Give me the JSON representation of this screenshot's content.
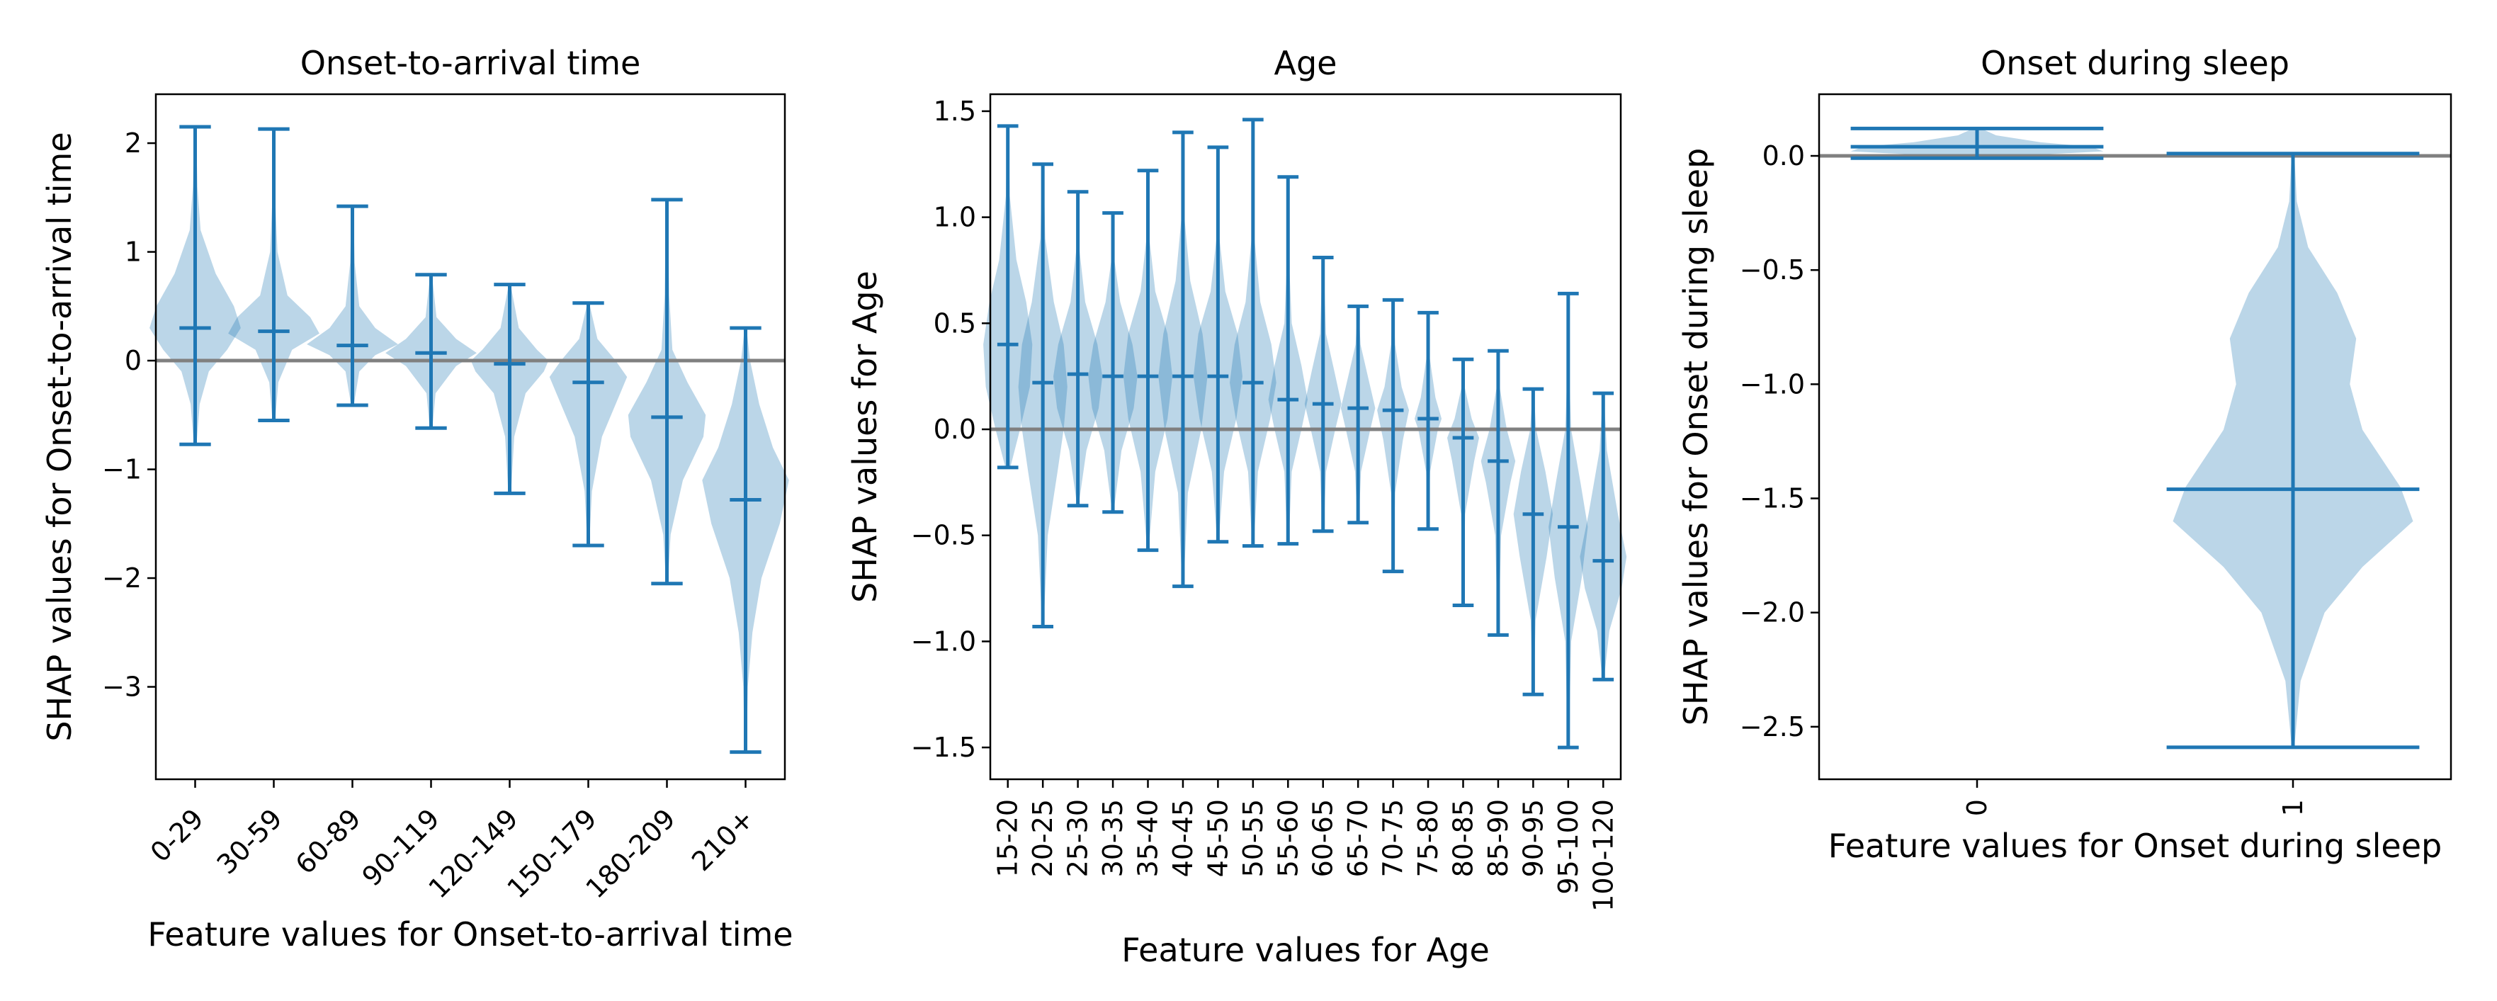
{
  "chart_data": [
    {
      "type": "violin",
      "title": "Onset-to-arrival time",
      "xlabel": "Feature values for Onset-to-arrival time",
      "ylabel": "SHAP values for Onset-to-arrival time",
      "ylim": [
        -3.85,
        2.45
      ],
      "yticks": [
        -3,
        -2,
        -1,
        0,
        1,
        2
      ],
      "ytick_labels": [
        "−3",
        "−2",
        "−1",
        "0",
        "1",
        "2"
      ],
      "xtick_rotation": 45,
      "reference_line": 0,
      "categories": [
        "0-29",
        "30-59",
        "60-89",
        "90-119",
        "120-149",
        "150-179",
        "180-209",
        "210+"
      ],
      "min": [
        -0.77,
        -0.55,
        -0.41,
        -0.62,
        -1.22,
        -1.7,
        -2.05,
        -3.6
      ],
      "max": [
        2.15,
        2.13,
        1.42,
        0.79,
        0.7,
        0.53,
        1.48,
        0.3
      ],
      "median": [
        0.3,
        0.27,
        0.14,
        0.07,
        -0.03,
        -0.2,
        -0.52,
        -1.28
      ],
      "width_scale": 0.58,
      "density": [
        [
          [
            -0.77,
            0.03
          ],
          [
            -0.4,
            0.1
          ],
          [
            -0.1,
            0.3
          ],
          [
            0.1,
            0.7
          ],
          [
            0.3,
            1.0
          ],
          [
            0.5,
            0.85
          ],
          [
            0.8,
            0.45
          ],
          [
            1.2,
            0.12
          ],
          [
            1.6,
            0.05
          ],
          [
            2.15,
            0.02
          ]
        ],
        [
          [
            -0.55,
            0.03
          ],
          [
            -0.2,
            0.1
          ],
          [
            0.1,
            0.4
          ],
          [
            0.25,
            1.0
          ],
          [
            0.4,
            0.8
          ],
          [
            0.6,
            0.3
          ],
          [
            1.0,
            0.08
          ],
          [
            1.5,
            0.03
          ],
          [
            2.13,
            0.02
          ]
        ],
        [
          [
            -0.41,
            0.03
          ],
          [
            -0.1,
            0.15
          ],
          [
            0.05,
            0.5
          ],
          [
            0.15,
            1.0
          ],
          [
            0.3,
            0.5
          ],
          [
            0.5,
            0.15
          ],
          [
            0.9,
            0.05
          ],
          [
            1.42,
            0.02
          ]
        ],
        [
          [
            -0.62,
            0.03
          ],
          [
            -0.3,
            0.1
          ],
          [
            -0.05,
            0.55
          ],
          [
            0.07,
            1.0
          ],
          [
            0.2,
            0.55
          ],
          [
            0.4,
            0.12
          ],
          [
            0.79,
            0.02
          ]
        ],
        [
          [
            -1.22,
            0.03
          ],
          [
            -0.7,
            0.1
          ],
          [
            -0.3,
            0.35
          ],
          [
            -0.1,
            0.75
          ],
          [
            0.0,
            0.85
          ],
          [
            0.1,
            0.6
          ],
          [
            0.3,
            0.2
          ],
          [
            0.7,
            0.02
          ]
        ],
        [
          [
            -1.7,
            0.02
          ],
          [
            -1.2,
            0.08
          ],
          [
            -0.7,
            0.3
          ],
          [
            -0.3,
            0.7
          ],
          [
            -0.15,
            0.85
          ],
          [
            0.0,
            0.6
          ],
          [
            0.2,
            0.2
          ],
          [
            0.53,
            0.02
          ]
        ],
        [
          [
            -2.05,
            0.02
          ],
          [
            -1.6,
            0.08
          ],
          [
            -1.1,
            0.35
          ],
          [
            -0.7,
            0.8
          ],
          [
            -0.5,
            0.85
          ],
          [
            -0.2,
            0.45
          ],
          [
            0.1,
            0.12
          ],
          [
            0.6,
            0.05
          ],
          [
            1.48,
            0.02
          ]
        ],
        [
          [
            -3.6,
            0.02
          ],
          [
            -3.0,
            0.05
          ],
          [
            -2.5,
            0.15
          ],
          [
            -2.0,
            0.35
          ],
          [
            -1.5,
            0.75
          ],
          [
            -1.1,
            0.95
          ],
          [
            -0.8,
            0.6
          ],
          [
            -0.4,
            0.3
          ],
          [
            0.0,
            0.1
          ],
          [
            0.3,
            0.02
          ]
        ]
      ]
    },
    {
      "type": "violin",
      "title": "Age",
      "xlabel": "Feature values for Age",
      "ylabel": "SHAP values for Age",
      "ylim": [
        -1.65,
        1.58
      ],
      "yticks": [
        -1.5,
        -1.0,
        -0.5,
        0.0,
        0.5,
        1.0,
        1.5
      ],
      "ytick_labels": [
        "−1.5",
        "−1.0",
        "−0.5",
        "0.0",
        "0.5",
        "1.0",
        "1.5"
      ],
      "xtick_rotation": 90,
      "reference_line": 0,
      "categories": [
        "15-20",
        "20-25",
        "25-30",
        "30-35",
        "35-40",
        "40-45",
        "45-50",
        "50-55",
        "55-60",
        "60-65",
        "65-70",
        "70-75",
        "75-80",
        "80-85",
        "85-90",
        "90-95",
        "95-100",
        "100-120"
      ],
      "min": [
        -0.18,
        -0.93,
        -0.36,
        -0.39,
        -0.57,
        -0.74,
        -0.53,
        -0.55,
        -0.54,
        -0.48,
        -0.44,
        -0.67,
        -0.47,
        -0.83,
        -0.97,
        -1.25,
        -1.5,
        -1.18
      ],
      "max": [
        1.43,
        1.25,
        1.12,
        1.02,
        1.22,
        1.4,
        1.33,
        1.46,
        1.19,
        0.81,
        0.58,
        0.61,
        0.55,
        0.33,
        0.37,
        0.19,
        0.64,
        0.17
      ],
      "median": [
        0.4,
        0.22,
        0.26,
        0.25,
        0.25,
        0.25,
        0.25,
        0.22,
        0.14,
        0.12,
        0.1,
        0.09,
        0.05,
        -0.04,
        -0.15,
        -0.4,
        -0.46,
        -0.62
      ],
      "width_scale": 0.7,
      "density": [
        [
          [
            -0.18,
            0.1
          ],
          [
            0.0,
            0.5
          ],
          [
            0.2,
            0.9
          ],
          [
            0.4,
            1.0
          ],
          [
            0.6,
            0.75
          ],
          [
            0.8,
            0.35
          ],
          [
            1.1,
            0.08
          ],
          [
            1.43,
            0.03
          ]
        ],
        [
          [
            -0.93,
            0.03
          ],
          [
            -0.5,
            0.2
          ],
          [
            -0.2,
            0.6
          ],
          [
            0.0,
            0.85
          ],
          [
            0.2,
            1.0
          ],
          [
            0.4,
            0.85
          ],
          [
            0.6,
            0.45
          ],
          [
            0.9,
            0.1
          ],
          [
            1.25,
            0.03
          ]
        ],
        [
          [
            -0.36,
            0.03
          ],
          [
            -0.1,
            0.35
          ],
          [
            0.1,
            0.85
          ],
          [
            0.25,
            1.0
          ],
          [
            0.4,
            0.8
          ],
          [
            0.6,
            0.3
          ],
          [
            0.85,
            0.06
          ],
          [
            1.12,
            0.02
          ]
        ],
        [
          [
            -0.39,
            0.03
          ],
          [
            -0.1,
            0.35
          ],
          [
            0.1,
            0.85
          ],
          [
            0.25,
            1.0
          ],
          [
            0.4,
            0.8
          ],
          [
            0.6,
            0.3
          ],
          [
            0.8,
            0.06
          ],
          [
            1.02,
            0.02
          ]
        ],
        [
          [
            -0.57,
            0.03
          ],
          [
            -0.2,
            0.3
          ],
          [
            0.05,
            0.8
          ],
          [
            0.25,
            1.0
          ],
          [
            0.45,
            0.8
          ],
          [
            0.65,
            0.3
          ],
          [
            0.9,
            0.06
          ],
          [
            1.22,
            0.02
          ]
        ],
        [
          [
            -0.74,
            0.03
          ],
          [
            -0.3,
            0.2
          ],
          [
            0.0,
            0.75
          ],
          [
            0.25,
            1.0
          ],
          [
            0.45,
            0.8
          ],
          [
            0.7,
            0.3
          ],
          [
            1.0,
            0.06
          ],
          [
            1.4,
            0.02
          ]
        ],
        [
          [
            -0.53,
            0.03
          ],
          [
            -0.2,
            0.25
          ],
          [
            0.05,
            0.75
          ],
          [
            0.25,
            1.0
          ],
          [
            0.45,
            0.8
          ],
          [
            0.65,
            0.3
          ],
          [
            0.9,
            0.06
          ],
          [
            1.33,
            0.02
          ]
        ],
        [
          [
            -0.55,
            0.03
          ],
          [
            -0.2,
            0.2
          ],
          [
            0.05,
            0.7
          ],
          [
            0.22,
            0.95
          ],
          [
            0.4,
            0.75
          ],
          [
            0.6,
            0.3
          ],
          [
            0.9,
            0.06
          ],
          [
            1.46,
            0.02
          ]
        ],
        [
          [
            -0.54,
            0.03
          ],
          [
            -0.2,
            0.15
          ],
          [
            0.0,
            0.55
          ],
          [
            0.14,
            0.8
          ],
          [
            0.3,
            0.55
          ],
          [
            0.5,
            0.15
          ],
          [
            0.8,
            0.04
          ],
          [
            1.19,
            0.02
          ]
        ],
        [
          [
            -0.48,
            0.03
          ],
          [
            -0.2,
            0.12
          ],
          [
            0.0,
            0.5
          ],
          [
            0.12,
            0.75
          ],
          [
            0.28,
            0.45
          ],
          [
            0.45,
            0.12
          ],
          [
            0.81,
            0.02
          ]
        ],
        [
          [
            -0.44,
            0.03
          ],
          [
            -0.2,
            0.12
          ],
          [
            0.0,
            0.5
          ],
          [
            0.1,
            0.7
          ],
          [
            0.25,
            0.4
          ],
          [
            0.4,
            0.1
          ],
          [
            0.58,
            0.02
          ]
        ],
        [
          [
            -0.67,
            0.02
          ],
          [
            -0.3,
            0.08
          ],
          [
            -0.05,
            0.4
          ],
          [
            0.09,
            0.65
          ],
          [
            0.2,
            0.35
          ],
          [
            0.4,
            0.08
          ],
          [
            0.61,
            0.02
          ]
        ],
        [
          [
            -0.47,
            0.02
          ],
          [
            -0.2,
            0.08
          ],
          [
            0.0,
            0.4
          ],
          [
            0.05,
            0.55
          ],
          [
            0.15,
            0.3
          ],
          [
            0.35,
            0.05
          ],
          [
            0.55,
            0.02
          ]
        ],
        [
          [
            -0.83,
            0.02
          ],
          [
            -0.4,
            0.08
          ],
          [
            -0.15,
            0.45
          ],
          [
            -0.04,
            0.65
          ],
          [
            0.05,
            0.35
          ],
          [
            0.2,
            0.06
          ],
          [
            0.33,
            0.02
          ]
        ],
        [
          [
            -0.97,
            0.02
          ],
          [
            -0.5,
            0.12
          ],
          [
            -0.25,
            0.5
          ],
          [
            -0.15,
            0.7
          ],
          [
            0.0,
            0.35
          ],
          [
            0.2,
            0.06
          ],
          [
            0.37,
            0.02
          ]
        ],
        [
          [
            -1.25,
            0.02
          ],
          [
            -0.9,
            0.1
          ],
          [
            -0.6,
            0.55
          ],
          [
            -0.4,
            0.8
          ],
          [
            -0.2,
            0.5
          ],
          [
            0.0,
            0.12
          ],
          [
            0.19,
            0.02
          ]
        ],
        [
          [
            -1.5,
            0.02
          ],
          [
            -1.0,
            0.12
          ],
          [
            -0.7,
            0.55
          ],
          [
            -0.46,
            0.8
          ],
          [
            -0.25,
            0.5
          ],
          [
            0.0,
            0.12
          ],
          [
            0.3,
            0.03
          ],
          [
            0.64,
            0.02
          ]
        ],
        [
          [
            -1.18,
            0.03
          ],
          [
            -0.95,
            0.25
          ],
          [
            -0.75,
            0.75
          ],
          [
            -0.6,
            0.95
          ],
          [
            -0.4,
            0.6
          ],
          [
            -0.1,
            0.15
          ],
          [
            0.17,
            0.02
          ]
        ]
      ]
    },
    {
      "type": "violin",
      "title": "Onset during sleep",
      "xlabel": "Feature values for Onset during sleep",
      "ylabel": "SHAP values for Onset during sleep",
      "ylim": [
        -2.73,
        0.27
      ],
      "yticks": [
        -2.5,
        -2.0,
        -1.5,
        -1.0,
        -0.5,
        0.0
      ],
      "ytick_labels": [
        "−2.5",
        "−2.0",
        "−1.5",
        "−1.0",
        "−0.5",
        "0.0"
      ],
      "xtick_rotation": 90,
      "reference_line": 0,
      "categories": [
        "0",
        "1"
      ],
      "min": [
        -0.01,
        -2.59
      ],
      "max": [
        0.12,
        0.01
      ],
      "median": [
        0.04,
        -1.46
      ],
      "width_scale": 0.4,
      "density": [
        [
          [
            -0.01,
            0.05
          ],
          [
            0.0,
            0.3
          ],
          [
            0.02,
            1.0
          ],
          [
            0.04,
            0.9
          ],
          [
            0.06,
            0.5
          ],
          [
            0.09,
            0.15
          ],
          [
            0.12,
            0.03
          ]
        ],
        [
          [
            -2.59,
            0.01
          ],
          [
            -2.3,
            0.06
          ],
          [
            -2.0,
            0.25
          ],
          [
            -1.8,
            0.55
          ],
          [
            -1.6,
            0.95
          ],
          [
            -1.45,
            0.85
          ],
          [
            -1.2,
            0.55
          ],
          [
            -1.0,
            0.45
          ],
          [
            -0.8,
            0.5
          ],
          [
            -0.6,
            0.35
          ],
          [
            -0.4,
            0.12
          ],
          [
            -0.2,
            0.03
          ],
          [
            0.01,
            0.01
          ]
        ]
      ]
    }
  ]
}
